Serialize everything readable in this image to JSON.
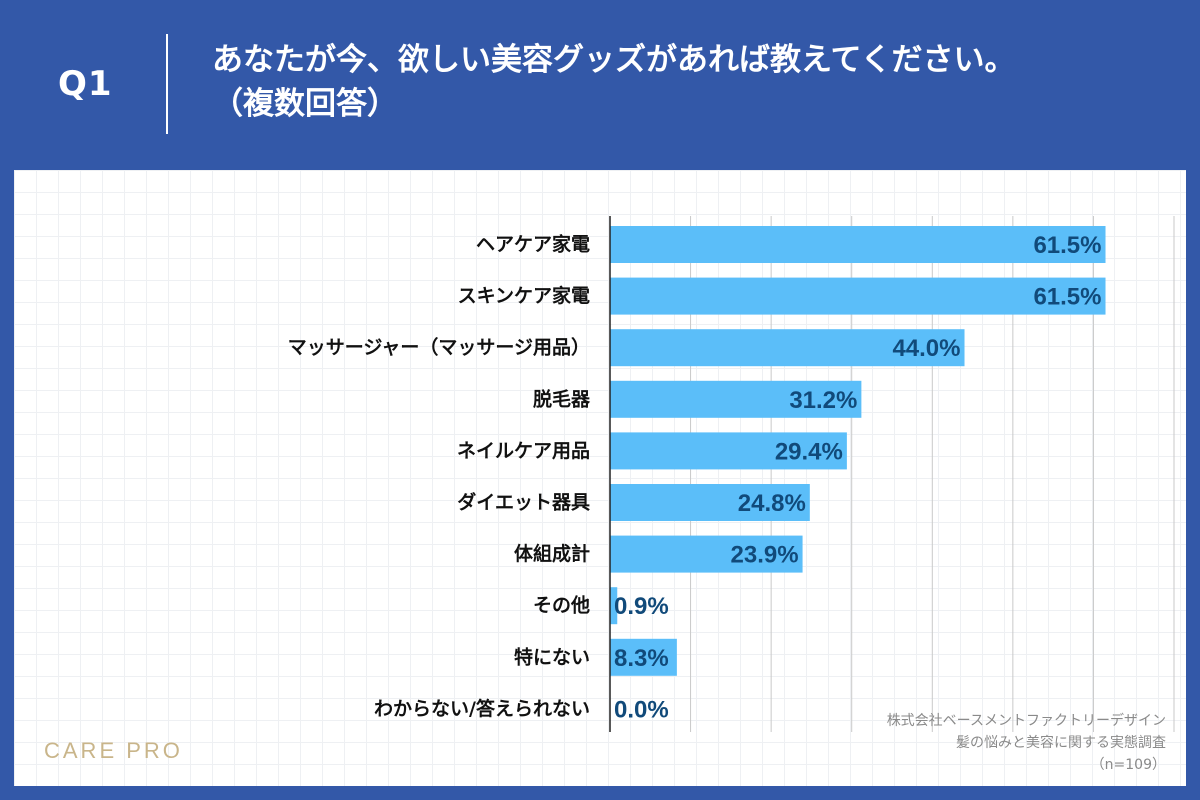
{
  "header": {
    "question_no": "Q1",
    "question_text": "あなたが今、欲しい美容グッズがあれば教えてください。",
    "question_note": "（複数回答）"
  },
  "branding": {
    "logo_text": "CARE PRO"
  },
  "source": {
    "company": "株式会社ベースメントファクトリーデザイン",
    "survey": "髪の悩みと美容に関する実態調査",
    "sample": "（n=109）"
  },
  "colors": {
    "bar": "#5bbef9",
    "value_text": "#114a7a",
    "label_text": "#111111",
    "background": "#3358a8"
  },
  "chart_data": {
    "type": "bar",
    "orientation": "horizontal",
    "categories": [
      "ヘアケア家電",
      "スキンケア家電",
      "マッサージャー（マッサージ用品）",
      "脱毛器",
      "ネイルケア用品",
      "ダイエット器具",
      "体組成計",
      "その他",
      "特にない",
      "わからない/答えられない"
    ],
    "values": [
      61.5,
      61.5,
      44.0,
      31.2,
      29.4,
      24.8,
      23.9,
      0.9,
      8.3,
      0.0
    ],
    "value_labels": [
      "61.5%",
      "61.5%",
      "44.0%",
      "31.2%",
      "29.4%",
      "24.8%",
      "23.9%",
      "0.9%",
      "8.3%",
      "0.0%"
    ],
    "xlim": [
      0,
      70
    ],
    "grid": true,
    "title": "",
    "xlabel": "",
    "ylabel": ""
  }
}
